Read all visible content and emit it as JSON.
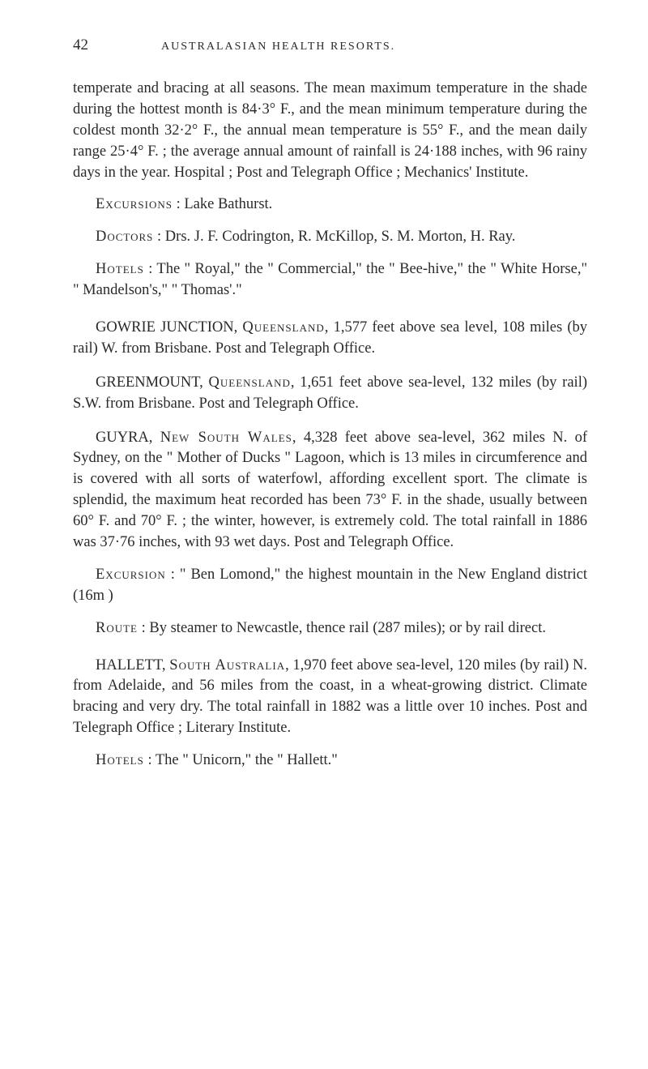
{
  "page": {
    "number": "42",
    "running_head": "AUSTRALASIAN HEALTH RESORTS."
  },
  "paragraphs": {
    "p1": "temperate and bracing at all seasons. The mean maximum temperature in the shade during the hottest month is 84·3° F., and the mean minimum temperature during the coldest month 32·2° F., the annual mean temperature is 55° F., and the mean daily range 25·4° F. ; the average annual amount of rainfall is 24·188 inches, with 96 rainy days in the year. Hospital ; Post and Telegraph Office ; Mechanics' Institute.",
    "p2_label": "Excursions",
    "p2_text": " : Lake Bathurst.",
    "p3_label": "Doctors",
    "p3_text": " : Drs. J. F. Codrington, R. McKillop, S. M. Morton, H. Ray.",
    "p4_label": "Hotels",
    "p4_text": " : The \" Royal,\" the \" Commercial,\" the \" Bee-hive,\" the \" White Horse,\" \" Mandelson's,\" \" Thomas'.\"",
    "p5_head": "GOWRIE JUNCTION, ",
    "p5_label": "Queensland",
    "p5_text": ", 1,577 feet above sea level, 108 miles (by rail) W. from Brisbane. Post and Telegraph Office.",
    "p6_head": "GREENMOUNT, ",
    "p6_label": "Queensland",
    "p6_text": ", 1,651 feet above sea-level, 132 miles (by rail) S.W. from Brisbane. Post and Telegraph Office.",
    "p7_head": "GUYRA, ",
    "p7_label": "New South Wales",
    "p7_text": ", 4,328 feet above sea-level, 362 miles N. of Sydney, on the \" Mother of Ducks \" Lagoon, which is 13 miles in circumference and is covered with all sorts of waterfowl, affording excellent sport. The climate is splendid, the maximum heat recorded has been 73° F. in the shade, usually between 60° F. and 70° F. ; the winter, however, is extremely cold. The total rainfall in 1886 was 37·76 inches, with 93 wet days. Post and Telegraph Office.",
    "p8_label": "Excursion",
    "p8_text": " : \" Ben Lomond,\" the highest mountain in the New England district (16m )",
    "p9_label": "Route",
    "p9_text": " : By steamer to Newcastle, thence rail (287 miles); or by rail direct.",
    "p10_head": "HALLETT, ",
    "p10_label": "South Australia",
    "p10_text": ", 1,970 feet above sea-level, 120 miles (by rail) N. from Adelaide, and 56 miles from the coast, in a wheat-growing district. Climate bracing and very dry. The total rainfall in 1882 was a little over 10 inches. Post and Telegraph Office ; Literary Institute.",
    "p11_label": "Hotels",
    "p11_text": " : The \" Unicorn,\" the \" Hallett.\""
  }
}
